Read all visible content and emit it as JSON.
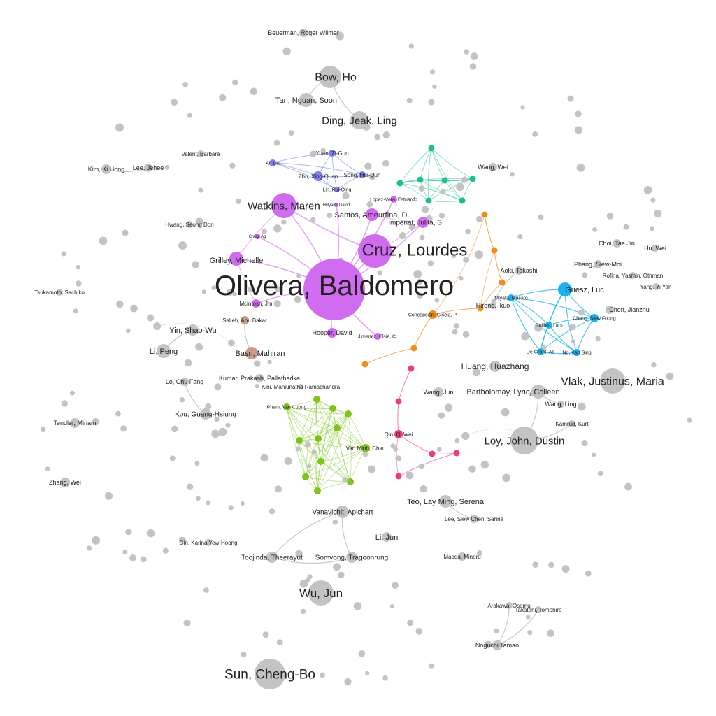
{
  "colors": {
    "purple": "#d884f2",
    "purple_node": "#cf6cf0",
    "blue": "#8080f0",
    "teal": "#1cbf8f",
    "orange": "#f28c1c",
    "cyan": "#19b4f0",
    "green": "#7ec41c",
    "pink": "#ea3f72",
    "brown": "#c99a8e",
    "gray": "#c3c3c3",
    "edge_gray": "#bdbdbd"
  },
  "nodes": [
    {
      "label": "Olivera, Baldomero",
      "cluster": "purple",
      "size": "xl"
    },
    {
      "label": "Cruz, Lourdes",
      "cluster": "purple",
      "size": "lg"
    },
    {
      "label": "Watkins, Maren",
      "cluster": "purple",
      "size": "md"
    },
    {
      "label": "Santos, Ameurfina, D.",
      "cluster": "purple",
      "size": "sm"
    },
    {
      "label": "Imperial, Julita, S.",
      "cluster": "purple",
      "size": "sm"
    },
    {
      "label": "Grilley, Michelle",
      "cluster": "purple",
      "size": "sm"
    },
    {
      "label": "Mcintosh, Jm",
      "cluster": "purple",
      "size": "xs"
    },
    {
      "label": "Hooper, David",
      "cluster": "purple",
      "size": "xs"
    },
    {
      "label": "Jimenez, Elsie, C.",
      "cluster": "purple",
      "size": "xs"
    },
    {
      "label": "Lopez-Vera, Estuardo",
      "cluster": "purple",
      "size": "xs"
    },
    {
      "label": "Craig, Ag",
      "cluster": "purple",
      "size": "xs"
    },
    {
      "label": "Hillyard, David",
      "cluster": "purple",
      "size": "xs"
    },
    {
      "label": "Yuan, Zi-Guo",
      "cluster": "blue",
      "size": "xs"
    },
    {
      "label": "Zhu, Xing-Quan",
      "cluster": "blue",
      "size": "xs"
    },
    {
      "label": "Song, Hui-Qun",
      "cluster": "blue",
      "size": "xs"
    },
    {
      "label": "Lin, Rui-Qing",
      "cluster": "blue",
      "size": "xs"
    },
    {
      "label": "Ai, Lin",
      "cluster": "blue",
      "size": "xs"
    },
    {
      "label": "Griesz, Luc",
      "cluster": "cyan",
      "size": "sm"
    },
    {
      "label": "Chang, Siew Foong",
      "cluster": "cyan",
      "size": "xs"
    },
    {
      "label": "Guillen, Lars",
      "cluster": "cyan",
      "size": "xs"
    },
    {
      "label": "Miyata, Masato",
      "cluster": "cyan",
      "size": "xs"
    },
    {
      "label": "De Groot, Ad",
      "cluster": "cyan",
      "size": "xs"
    },
    {
      "label": "Ng, Kah Sing",
      "cluster": "cyan",
      "size": "xs"
    },
    {
      "label": "Concepcion, Gisela, P.",
      "cluster": "orange",
      "size": "xs"
    },
    {
      "label": "Van Minh, Chau",
      "cluster": "green",
      "size": "xs"
    },
    {
      "label": "Pham, Van Cuong",
      "cluster": "green",
      "size": "xs"
    },
    {
      "label": "Qin, Qi Wei",
      "cluster": "pink",
      "size": "xs"
    },
    {
      "label": "Salleh, Abu Bakar",
      "cluster": "brown",
      "size": "xs"
    },
    {
      "label": "Basri, Mahiran",
      "cluster": "brown",
      "size": "sm"
    },
    {
      "label": "Vlak, Justinus, Maria",
      "cluster": "gray",
      "size": "md"
    },
    {
      "label": "Loy, John, Dustin",
      "cluster": "gray",
      "size": "md"
    },
    {
      "label": "Sun, Cheng-Bo",
      "cluster": "gray",
      "size": "md"
    },
    {
      "label": "Wu, Jun",
      "cluster": "gray",
      "size": "md"
    },
    {
      "label": "Bow, Ho",
      "cluster": "gray",
      "size": "md"
    },
    {
      "label": "Ding, Jeak, Ling",
      "cluster": "gray",
      "size": "sm"
    },
    {
      "label": "Tan, Nguan, Soon",
      "cluster": "gray",
      "size": "sm"
    },
    {
      "label": "Huang, Huazhang",
      "cluster": "gray",
      "size": "sm"
    },
    {
      "label": "Bartholomay, Lyric, Colleen",
      "cluster": "gray",
      "size": "sm"
    },
    {
      "label": "Teo, Lay Ming, Serena",
      "cluster": "gray",
      "size": "sm"
    },
    {
      "label": "Vanavichit, Apichart",
      "cluster": "gray",
      "size": "sm"
    },
    {
      "label": "Toojinda, Theerayut",
      "cluster": "gray",
      "size": "sm"
    },
    {
      "label": "Somvong, Tragoonrung",
      "cluster": "gray",
      "size": "sm"
    },
    {
      "label": "Li, Jun",
      "cluster": "gray",
      "size": "sm"
    },
    {
      "label": "Yin, Shao-Wu",
      "cluster": "gray",
      "size": "sm"
    },
    {
      "label": "Li, Peng",
      "cluster": "gray",
      "size": "sm"
    },
    {
      "label": "Kou, Guang-Hsiung",
      "cluster": "gray",
      "size": "sm"
    },
    {
      "label": "Lo, Chu Fang",
      "cluster": "gray",
      "size": "xs"
    },
    {
      "label": "Tendler, Miriam",
      "cluster": "gray",
      "size": "xs"
    },
    {
      "label": "Zhang, Wei",
      "cluster": "gray",
      "size": "xs"
    },
    {
      "label": "Kim, Ki Hong",
      "cluster": "gray",
      "size": "xs"
    },
    {
      "label": "Lee, Jehee",
      "cluster": "gray",
      "size": "xs"
    },
    {
      "label": "Wang, Wei",
      "cluster": "gray",
      "size": "xs"
    },
    {
      "label": "Chen, Jianzhu",
      "cluster": "gray",
      "size": "xs"
    },
    {
      "label": "Phang, Siew-Moi",
      "cluster": "gray",
      "size": "xs"
    },
    {
      "label": "Choi, Tae Jin",
      "cluster": "gray",
      "size": "xs"
    },
    {
      "label": "Hu, Wei",
      "cluster": "gray",
      "size": "xs"
    },
    {
      "label": "Aoki, Takashi",
      "cluster": "gray",
      "size": "xs"
    },
    {
      "label": "Hirono, Ikuo",
      "cluster": "gray",
      "size": "xs"
    },
    {
      "label": "Wang, Jun",
      "cluster": "gray",
      "size": "xs"
    },
    {
      "label": "Wang, Ling",
      "cluster": "gray",
      "size": "xs"
    },
    {
      "label": "Kamrud, Kurt",
      "cluster": "gray",
      "size": "xs"
    },
    {
      "label": "Noguchi Tamao",
      "cluster": "gray",
      "size": "xs"
    },
    {
      "label": "Takatani, Tomohiro",
      "cluster": "gray",
      "size": "xs"
    },
    {
      "label": "Arakawa, Osamu",
      "cluster": "gray",
      "size": "xs"
    },
    {
      "label": "Maeda, Minoru",
      "cluster": "gray",
      "size": "xs"
    },
    {
      "label": "Lee, Siew Chen, Serina",
      "cluster": "gray",
      "size": "xs"
    },
    {
      "label": "Gin, Karina Yew-Hoong",
      "cluster": "gray",
      "size": "xs"
    },
    {
      "label": "Kumar, Prakash, Pallathadka",
      "cluster": "gray",
      "size": "xs"
    },
    {
      "label": "Hwang, Seong Don",
      "cluster": "gray",
      "size": "xs"
    },
    {
      "label": "Beuerman, Roger Wilmer",
      "cluster": "gray",
      "size": "xs"
    },
    {
      "label": "Valent, Barbara",
      "cluster": "gray",
      "size": "xs"
    },
    {
      "label": "Kini, Manjunatha Ramachandra",
      "cluster": "gray",
      "size": "xs"
    },
    {
      "label": "Tsukamoto, Sachiko",
      "cluster": "gray",
      "size": "xs"
    },
    {
      "label": "Yang, Yi Yan",
      "cluster": "gray",
      "size": "xs"
    },
    {
      "label": "Rofina, Yasmin, Othman",
      "cluster": "gray",
      "size": "xs"
    }
  ]
}
